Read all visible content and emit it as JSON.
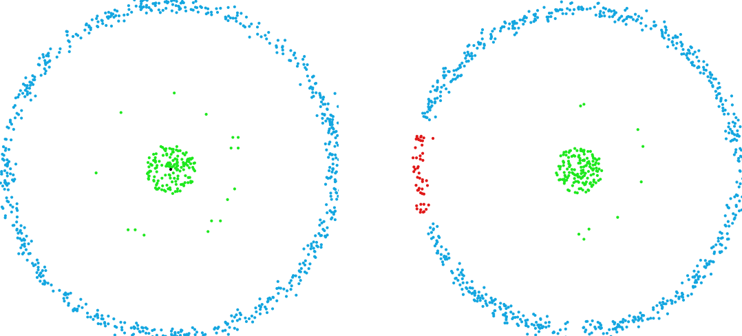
{
  "chart_data": [
    {
      "type": "scatter",
      "title": "",
      "xlabel": "",
      "ylabel": "",
      "axes": "hidden",
      "grid": false,
      "legend": "none",
      "xlim": [
        -1.0,
        1.0
      ],
      "ylim": [
        -1.0,
        1.0
      ],
      "colors": {
        "outer": "#14a6e0",
        "inner": "#1ee81e",
        "center": "#000000"
      },
      "structure": {
        "outer_ring": {
          "color_key": "outer",
          "count": 700,
          "radius": 0.93,
          "noise": 0.025,
          "seed": 11
        },
        "inner_blob": {
          "color_key": "inner",
          "count": 150,
          "radius": 0.14,
          "seed": 23
        }
      },
      "series": [
        {
          "color_key": "inner",
          "points": [
            [
              0.02,
              0.43
            ],
            [
              -0.28,
              0.32
            ],
            [
              0.2,
              0.31
            ],
            [
              -0.42,
              -0.02
            ],
            [
              0.35,
              0.18
            ],
            [
              0.38,
              0.18
            ],
            [
              0.34,
              0.12
            ],
            [
              0.38,
              0.12
            ],
            [
              0.36,
              -0.11
            ],
            [
              0.32,
              -0.17
            ],
            [
              -0.24,
              -0.34
            ],
            [
              -0.2,
              -0.34
            ],
            [
              -0.15,
              -0.37
            ],
            [
              0.23,
              -0.29
            ],
            [
              0.28,
              -0.29
            ],
            [
              0.21,
              -0.35
            ]
          ]
        },
        {
          "color_key": "center",
          "points": [
            [
              0.0,
              0.0
            ]
          ]
        }
      ]
    },
    {
      "type": "scatter",
      "title": "",
      "xlabel": "",
      "ylabel": "",
      "axes": "hidden",
      "grid": false,
      "legend": "none",
      "xlim": [
        -1.0,
        1.0
      ],
      "ylim": [
        -1.0,
        1.0
      ],
      "colors": {
        "outer": "#14a6e0",
        "inner": "#1ee81e",
        "highlight": "#e01818"
      },
      "structure": {
        "outer_ring": {
          "color_key": "outer",
          "count": 700,
          "radius": 0.95,
          "noise": 0.025,
          "seed": 37,
          "exclude_angle_range_deg": [
            162,
            200
          ]
        },
        "inner_blob": {
          "color_key": "inner",
          "count": 150,
          "radius": 0.14,
          "seed": 53
        },
        "highlight_arc": {
          "color_key": "highlight",
          "count": 45,
          "radius": 0.95,
          "noise": 0.025,
          "angle_range_deg": [
            166,
            196
          ],
          "seed": 71
        }
      },
      "series": [
        {
          "color_key": "inner",
          "points": [
            [
              0.03,
              0.39
            ],
            [
              0.01,
              0.38
            ],
            [
              0.35,
              0.24
            ],
            [
              0.38,
              0.14
            ],
            [
              0.37,
              -0.07
            ],
            [
              0.23,
              -0.28
            ],
            [
              0.06,
              -0.35
            ],
            [
              0.0,
              -0.38
            ],
            [
              0.03,
              -0.41
            ]
          ]
        },
        {
          "color_key": "highlight",
          "points": [
            [
              -0.96,
              0.2
            ],
            [
              -0.95,
              0.18
            ],
            [
              -0.94,
              -0.25
            ],
            [
              -0.96,
              -0.23
            ]
          ]
        }
      ]
    }
  ]
}
